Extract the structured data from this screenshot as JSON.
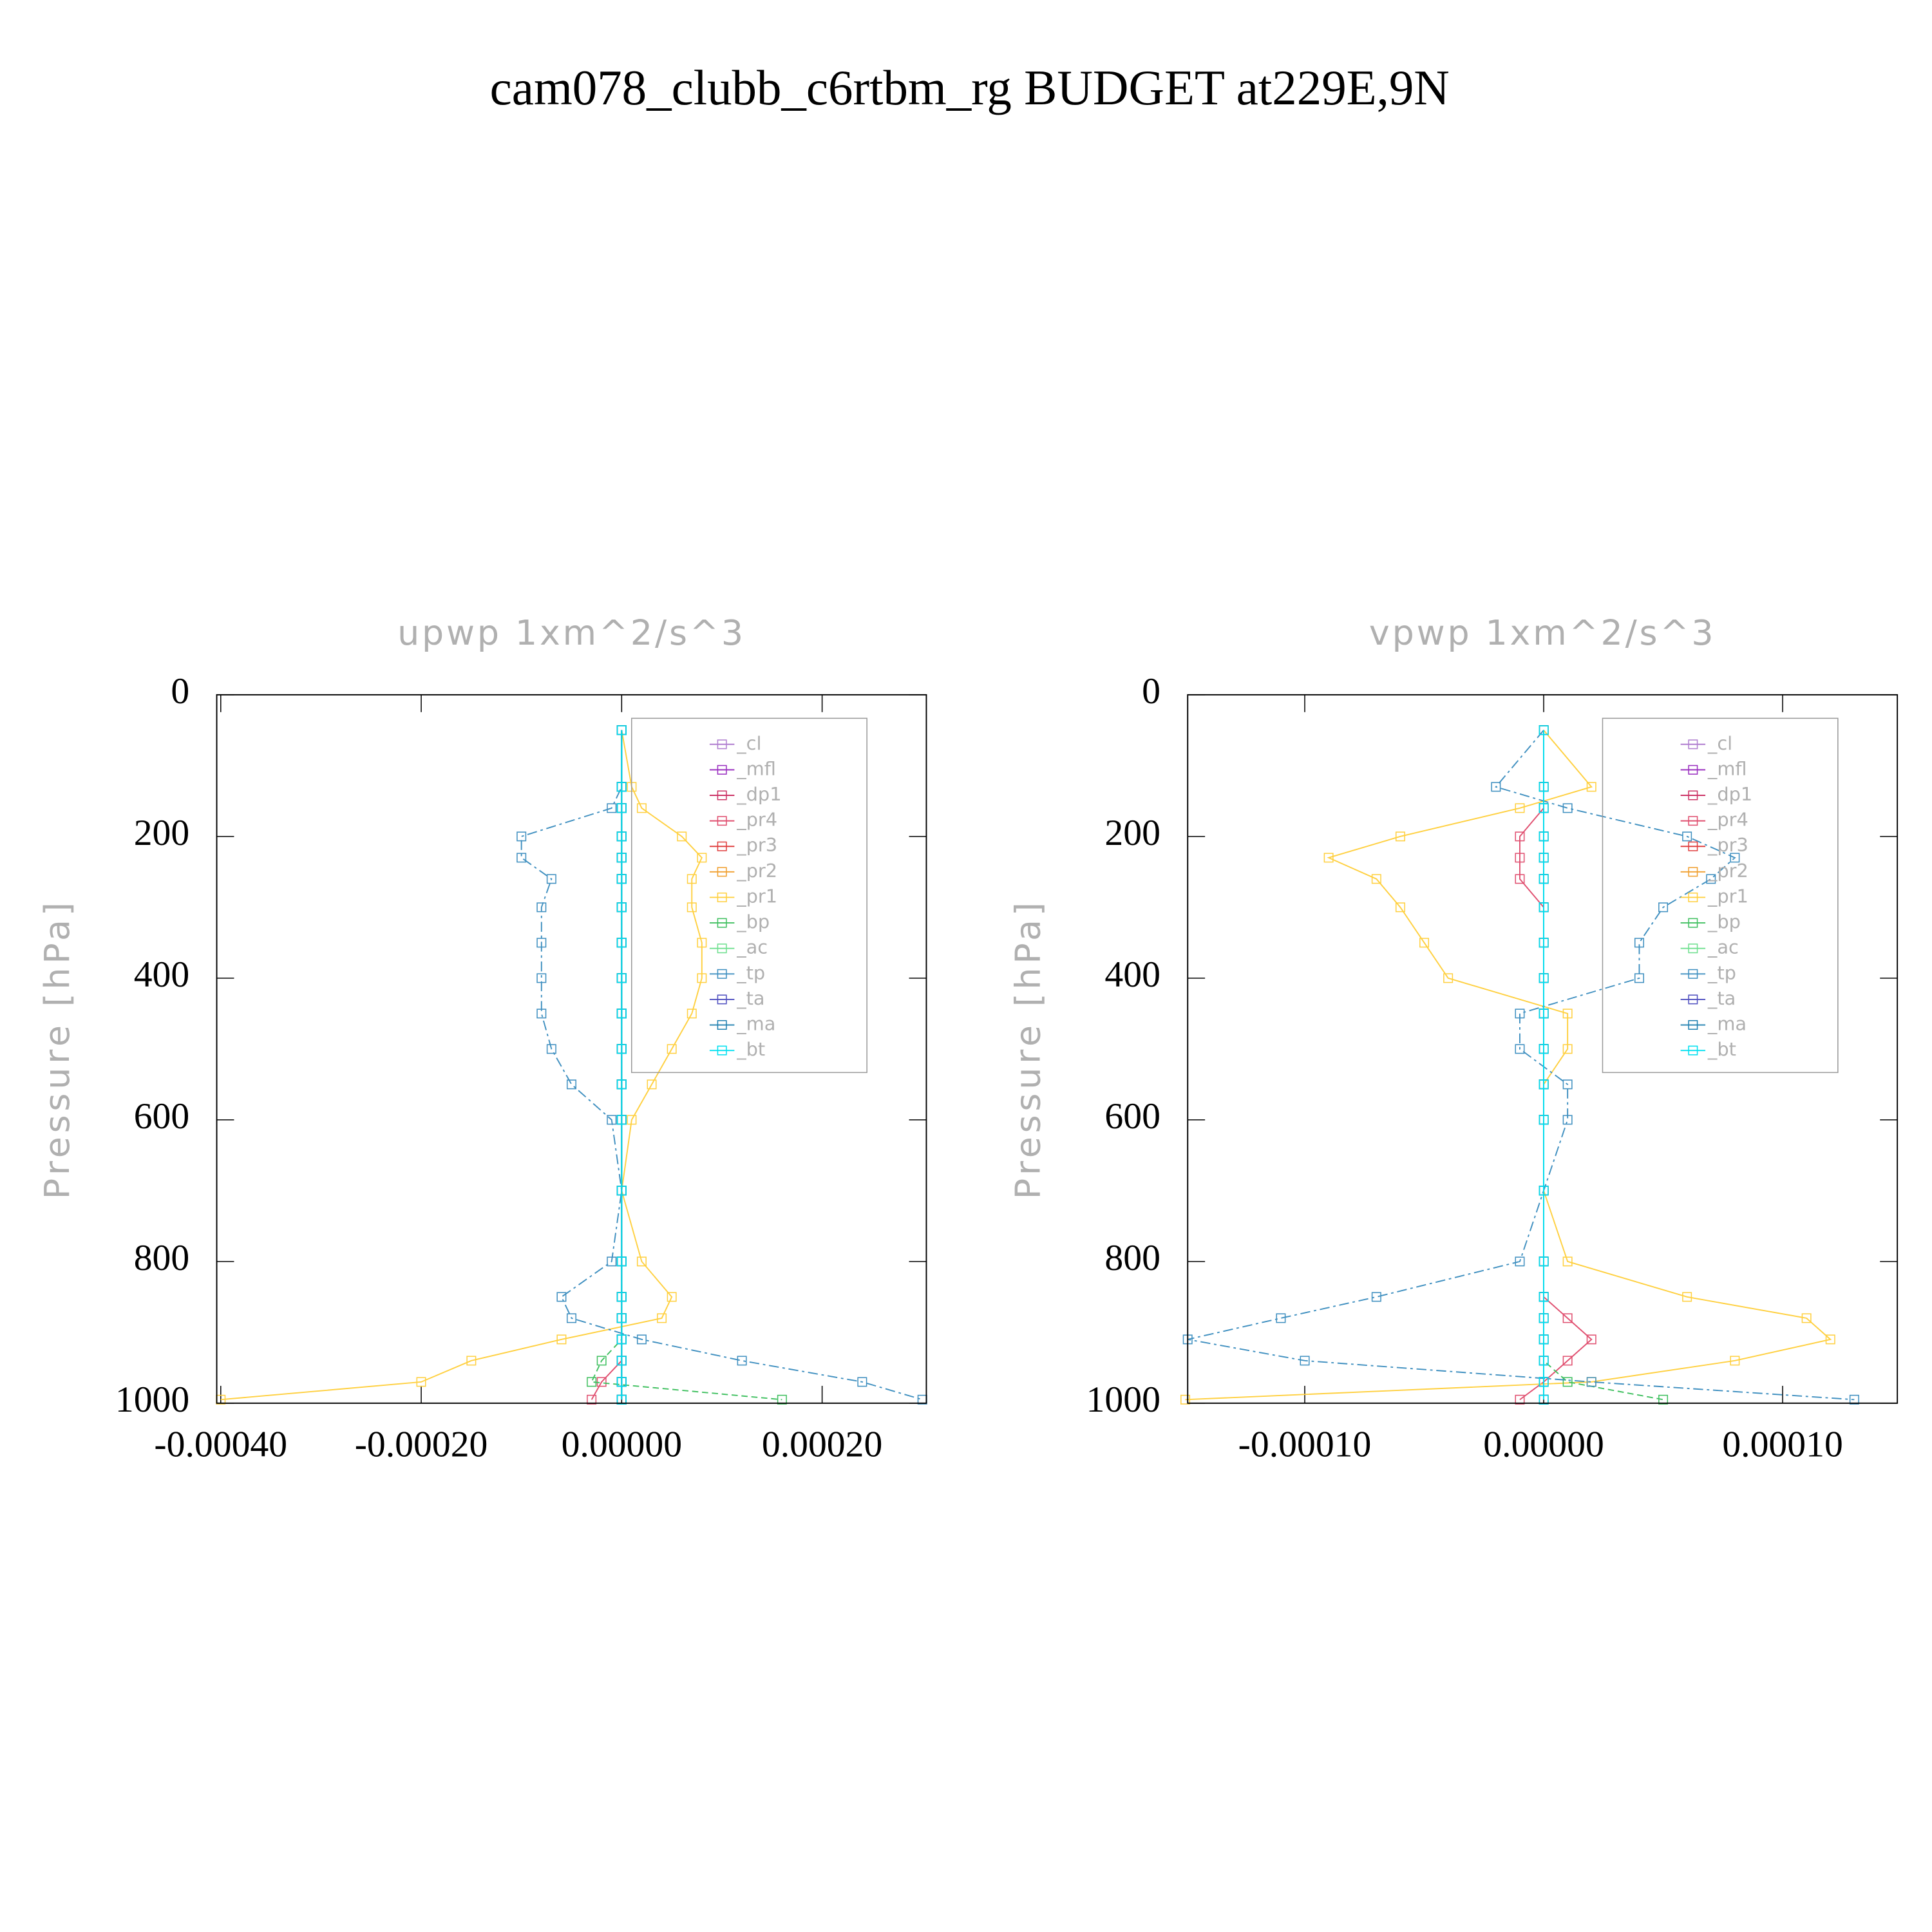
{
  "title": "cam078_clubb_c6rtbm_rg  BUDGET at229E,9N",
  "chart_data": [
    {
      "type": "line",
      "title": "upwp   1xm^2/s^3",
      "ylabel": "Pressure [hPa]",
      "invert_y": true,
      "legend": "upper right",
      "xlim": [
        -0.000404,
        0.000304
      ],
      "xticks": [
        {
          "value": -0.0004,
          "label": "-0.00040"
        },
        {
          "value": -0.0002,
          "label": "-0.00020"
        },
        {
          "value": 0,
          "label": "0.00000"
        },
        {
          "value": 0.0002,
          "label": "0.00020"
        }
      ],
      "ylim": [
        0,
        1000
      ],
      "yticks": [
        0,
        200,
        400,
        600,
        800,
        1000
      ],
      "levels": [
        50,
        130,
        160,
        200,
        230,
        260,
        300,
        350,
        400,
        450,
        500,
        550,
        600,
        700,
        800,
        850,
        880,
        910,
        940,
        970,
        995
      ],
      "series": [
        {
          "name": "_cl",
          "color": "#b07fd0",
          "values": [
            0,
            0,
            0,
            0,
            0,
            0,
            0,
            0,
            0,
            0,
            0,
            0,
            0,
            0,
            0,
            0,
            0,
            0,
            0,
            0,
            0
          ]
        },
        {
          "name": "_mfl",
          "color": "#9b30c0",
          "values": [
            0,
            0,
            0,
            0,
            0,
            0,
            0,
            0,
            0,
            0,
            0,
            0,
            0,
            0,
            0,
            0,
            0,
            0,
            0,
            0,
            0
          ]
        },
        {
          "name": "_dp1",
          "color": "#cc3366",
          "values": [
            0,
            0,
            0,
            0,
            0,
            0,
            0,
            0,
            0,
            0,
            0,
            0,
            0,
            0,
            0,
            0,
            0,
            0,
            0,
            0,
            0
          ]
        },
        {
          "name": "_pr4",
          "color": "#e05070",
          "values": [
            0,
            0,
            0,
            0,
            0,
            0,
            0,
            0,
            0,
            0,
            0,
            0,
            0,
            0,
            0,
            0,
            0,
            0,
            0,
            -2e-05,
            -3e-05
          ]
        },
        {
          "name": "_pr3",
          "color": "#e04040",
          "values": [
            0,
            0,
            0,
            0,
            0,
            0,
            0,
            0,
            0,
            0,
            0,
            0,
            0,
            0,
            0,
            0,
            0,
            0,
            0,
            0,
            0
          ]
        },
        {
          "name": "_pr2",
          "color": "#f0a030",
          "values": [
            0,
            0,
            0,
            0,
            0,
            0,
            0,
            0,
            0,
            0,
            0,
            0,
            0,
            0,
            0,
            0,
            0,
            0,
            0,
            0,
            0
          ]
        },
        {
          "name": "_pr1",
          "color": "#ffd040",
          "values": [
            0,
            1e-05,
            2e-05,
            6e-05,
            8e-05,
            7e-05,
            7e-05,
            8e-05,
            8e-05,
            7e-05,
            5e-05,
            3e-05,
            1e-05,
            0,
            2e-05,
            5e-05,
            4e-05,
            -6e-05,
            -0.00015,
            -0.0002,
            -0.0004
          ]
        },
        {
          "name": "_bp",
          "color": "#40c060",
          "values": [
            0,
            0,
            0,
            0,
            0,
            0,
            0,
            0,
            0,
            0,
            0,
            0,
            0,
            0,
            0,
            0,
            0,
            0,
            -2e-05,
            -3e-05,
            0.00016
          ]
        },
        {
          "name": "_ac",
          "color": "#70e090",
          "values": [
            0,
            0,
            0,
            0,
            0,
            0,
            0,
            0,
            0,
            0,
            0,
            0,
            0,
            0,
            0,
            0,
            0,
            0,
            0,
            0,
            0
          ]
        },
        {
          "name": "_tp",
          "color": "#4090c0",
          "values": [
            0,
            0,
            -1e-05,
            -0.0001,
            -0.0001,
            -7e-05,
            -8e-05,
            -8e-05,
            -8e-05,
            -8e-05,
            -7e-05,
            -5e-05,
            -1e-05,
            0,
            -1e-05,
            -6e-05,
            -5e-05,
            2e-05,
            0.00012,
            0.00024,
            0.0003
          ]
        },
        {
          "name": "_ta",
          "color": "#5050c0",
          "values": [
            0,
            0,
            0,
            0,
            0,
            0,
            0,
            0,
            0,
            0,
            0,
            0,
            0,
            0,
            0,
            0,
            0,
            0,
            0,
            0,
            0
          ]
        },
        {
          "name": "_ma",
          "color": "#2080b0",
          "values": [
            0,
            0,
            0,
            0,
            0,
            0,
            0,
            0,
            0,
            0,
            0,
            0,
            0,
            0,
            0,
            0,
            0,
            0,
            0,
            0,
            0
          ]
        },
        {
          "name": "_bt",
          "color": "#00e0f0",
          "values": [
            0,
            0,
            0,
            0,
            0,
            0,
            0,
            0,
            0,
            0,
            0,
            0,
            0,
            0,
            0,
            0,
            0,
            0,
            0,
            0,
            0
          ]
        }
      ]
    },
    {
      "type": "line",
      "title": "vpwp   1xm^2/s^3",
      "ylabel": "Pressure [hPa]",
      "invert_y": true,
      "legend": "upper right",
      "xlim": [
        -0.000149,
        0.000148
      ],
      "xticks": [
        {
          "value": -0.0001,
          "label": "-0.00010"
        },
        {
          "value": 0,
          "label": "0.00000"
        },
        {
          "value": 0.0001,
          "label": "0.00010"
        }
      ],
      "ylim": [
        0,
        1000
      ],
      "yticks": [
        0,
        200,
        400,
        600,
        800,
        1000
      ],
      "levels": [
        50,
        130,
        160,
        200,
        230,
        260,
        300,
        350,
        400,
        450,
        500,
        550,
        600,
        700,
        800,
        850,
        880,
        910,
        940,
        970,
        995
      ],
      "series": [
        {
          "name": "_cl",
          "color": "#b07fd0",
          "values": [
            0,
            0,
            0,
            0,
            0,
            0,
            0,
            0,
            0,
            0,
            0,
            0,
            0,
            0,
            0,
            0,
            0,
            0,
            0,
            0,
            0
          ]
        },
        {
          "name": "_mfl",
          "color": "#9b30c0",
          "values": [
            0,
            0,
            0,
            0,
            0,
            0,
            0,
            0,
            0,
            0,
            0,
            0,
            0,
            0,
            0,
            0,
            0,
            0,
            0,
            0,
            0
          ]
        },
        {
          "name": "_dp1",
          "color": "#cc3366",
          "values": [
            0,
            0,
            0,
            0,
            0,
            0,
            0,
            0,
            0,
            0,
            0,
            0,
            0,
            0,
            0,
            0,
            0,
            0,
            0,
            0,
            0
          ]
        },
        {
          "name": "_pr4",
          "color": "#e05070",
          "values": [
            0,
            0,
            0,
            -1e-05,
            -1e-05,
            -1e-05,
            0,
            0,
            0,
            0,
            0,
            0,
            0,
            0,
            0,
            0,
            1e-05,
            2e-05,
            1e-05,
            0,
            -1e-05
          ]
        },
        {
          "name": "_pr3",
          "color": "#e04040",
          "values": [
            0,
            0,
            0,
            0,
            0,
            0,
            0,
            0,
            0,
            0,
            0,
            0,
            0,
            0,
            0,
            0,
            0,
            0,
            0,
            0,
            0
          ]
        },
        {
          "name": "_pr2",
          "color": "#f0a030",
          "values": [
            0,
            0,
            0,
            0,
            0,
            0,
            0,
            0,
            0,
            0,
            0,
            0,
            0,
            0,
            0,
            0,
            0,
            0,
            0,
            0,
            0
          ]
        },
        {
          "name": "_pr1",
          "color": "#ffd040",
          "values": [
            0,
            2e-05,
            -1e-05,
            -6e-05,
            -9e-05,
            -7e-05,
            -6e-05,
            -5e-05,
            -4e-05,
            1e-05,
            1e-05,
            0,
            0,
            0,
            1e-05,
            6e-05,
            0.00011,
            0.00012,
            8e-05,
            2e-05,
            -0.00015
          ]
        },
        {
          "name": "_bp",
          "color": "#40c060",
          "values": [
            0,
            0,
            0,
            0,
            0,
            0,
            0,
            0,
            0,
            0,
            0,
            0,
            0,
            0,
            0,
            0,
            0,
            0,
            0,
            1e-05,
            5e-05
          ]
        },
        {
          "name": "_ac",
          "color": "#70e090",
          "values": [
            0,
            0,
            0,
            0,
            0,
            0,
            0,
            0,
            0,
            0,
            0,
            0,
            0,
            0,
            0,
            0,
            0,
            0,
            0,
            0,
            0
          ]
        },
        {
          "name": "_tp",
          "color": "#4090c0",
          "values": [
            0,
            -2e-05,
            1e-05,
            6e-05,
            8e-05,
            7e-05,
            5e-05,
            4e-05,
            4e-05,
            -1e-05,
            -1e-05,
            1e-05,
            1e-05,
            0,
            -1e-05,
            -7e-05,
            -0.00011,
            -0.000149,
            -0.0001,
            2e-05,
            0.00013
          ]
        },
        {
          "name": "_ta",
          "color": "#5050c0",
          "values": [
            0,
            0,
            0,
            0,
            0,
            0,
            0,
            0,
            0,
            0,
            0,
            0,
            0,
            0,
            0,
            0,
            0,
            0,
            0,
            0,
            0
          ]
        },
        {
          "name": "_ma",
          "color": "#2080b0",
          "values": [
            0,
            0,
            0,
            0,
            0,
            0,
            0,
            0,
            0,
            0,
            0,
            0,
            0,
            0,
            0,
            0,
            0,
            0,
            0,
            0,
            0
          ]
        },
        {
          "name": "_bt",
          "color": "#00e0f0",
          "values": [
            0,
            0,
            0,
            0,
            0,
            0,
            0,
            0,
            0,
            0,
            0,
            0,
            0,
            0,
            0,
            0,
            0,
            0,
            0,
            0,
            0
          ]
        }
      ]
    }
  ]
}
